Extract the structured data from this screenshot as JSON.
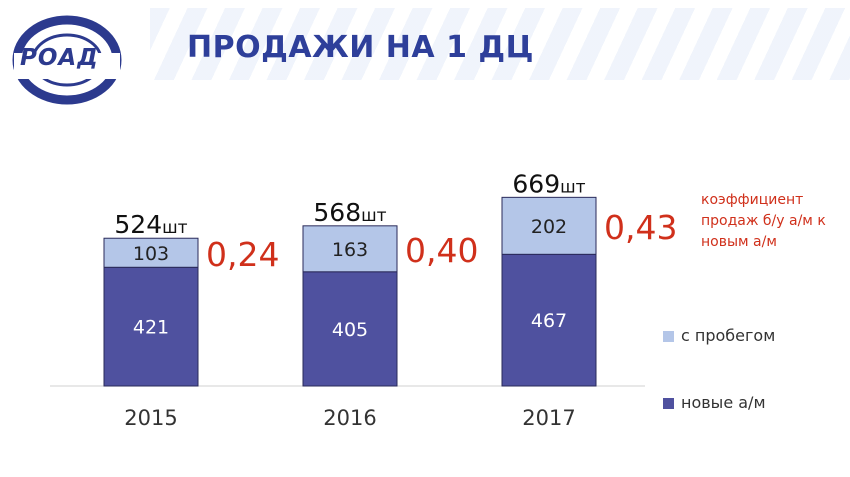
{
  "header": {
    "title": "ПРОДАЖИ НА 1 ДЦ",
    "logo_text": "РОАД"
  },
  "coef_note": "коэффициент продаж б/у а/м к новым а/м",
  "colors": {
    "new": "#4f519f",
    "used": "#b4c6e8",
    "coef": "#d0301b",
    "title": "#2e3f9a"
  },
  "legend": [
    {
      "label": "с пробегом",
      "color": "#b4c6e8"
    },
    {
      "label": "новые а/м",
      "color": "#4f519f"
    }
  ],
  "chart_data": {
    "type": "bar",
    "stacked": true,
    "categories": [
      "2015",
      "2016",
      "2017"
    ],
    "series": [
      {
        "name": "новые а/м",
        "values": [
          421,
          405,
          467
        ]
      },
      {
        "name": "с пробегом",
        "values": [
          103,
          163,
          202
        ]
      }
    ],
    "totals": [
      524,
      568,
      669
    ],
    "total_unit": "шт",
    "ratios": [
      "0,24",
      "0,40",
      "0,43"
    ],
    "ylim": [
      0,
      700
    ],
    "grid": false,
    "legend_position": "right"
  }
}
